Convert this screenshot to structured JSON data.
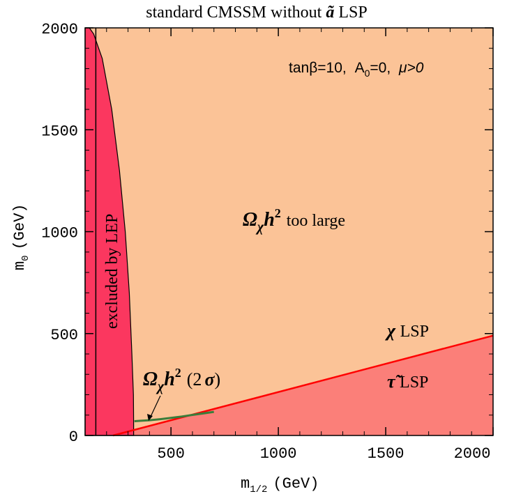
{
  "chart_data": {
    "type": "area",
    "title": "standard CMSSM without ã LSP",
    "title_main": "standard CMSSM without",
    "title_symbol": "ã",
    "title_suffix": "LSP",
    "xlabel": "m",
    "xlabel_sub": "1/2",
    "xlabel_unit": "(GeV)",
    "ylabel": "m",
    "ylabel_sub": "0",
    "ylabel_unit": "(GeV)",
    "xlim": [
      100,
      2000
    ],
    "ylim": [
      0,
      2000
    ],
    "x_ticks": [
      500,
      1000,
      1500,
      2000
    ],
    "x_tick_labels": [
      "500",
      "1000",
      "1500",
      "2000"
    ],
    "y_ticks": [
      0,
      500,
      1000,
      1500,
      2000
    ],
    "y_tick_labels": [
      "0",
      "500",
      "1000",
      "1500",
      "2000"
    ],
    "grid": false,
    "parameters_label": "tanβ=10, A₀=0, μ>0",
    "params": {
      "tan": "tanβ=10,",
      "a0": "A",
      "a0_sub": "0",
      "a0_val": "=0,",
      "mu": "μ>0"
    },
    "regions": [
      {
        "label_main": "Ω",
        "label_sub": "χ",
        "label_h": "h",
        "label_sup": "2",
        "label_text": "too large",
        "fill": "#fbc397",
        "description_region": "relic density too large"
      },
      {
        "label": "excluded by LEP",
        "fill": "#fb375f",
        "boundary": {
          "x": [
            326,
            325,
            318,
            306,
            287,
            260,
            224,
            180,
            140,
            120,
            110,
            100,
            100
          ],
          "y": [
            68,
            200,
            400,
            700,
            1000,
            1300,
            1600,
            1850,
            1970,
            2000,
            2000,
            2000,
            68
          ]
        }
      },
      {
        "label_sym": "τ̃",
        "label_text": "LSP",
        "fill": "#fb7f79",
        "boundary": {
          "x": [
            230,
            2000,
            2000,
            230
          ],
          "y": [
            0,
            490,
            0,
            0
          ]
        }
      }
    ],
    "series": [
      {
        "name": "χ LSP / τ̃ LSP boundary",
        "color": "#ff0000",
        "x": [
          230,
          2000
        ],
        "y": [
          0,
          490
        ]
      },
      {
        "name": "LEP chargino limit",
        "color": "#000000",
        "x": [
          150,
          150
        ],
        "y": [
          0,
          2000
        ]
      },
      {
        "name": "Ωχh² (2σ)",
        "color": "#3a7d3a",
        "x": [
          330,
          360,
          400,
          450,
          500,
          550,
          600,
          650,
          700
        ],
        "y": [
          70,
          72,
          75,
          80,
          86,
          93,
          101,
          108,
          116
        ]
      }
    ],
    "annotations": {
      "chi_lsp_sym": "χ",
      "chi_lsp_text": "LSP",
      "stau_sym": "τ̃",
      "stau_text": "LSP",
      "relic_band": "Ωχh² (2σ)",
      "relic_band_open": "(2",
      "relic_band_sigma": "σ",
      "relic_band_close": ")"
    }
  },
  "colors": {
    "orange_region": "#fbc397",
    "lep_region": "#fb375f",
    "stau_region": "#fb7f79",
    "boundary_line": "#ff0000",
    "axis": "#000000"
  }
}
